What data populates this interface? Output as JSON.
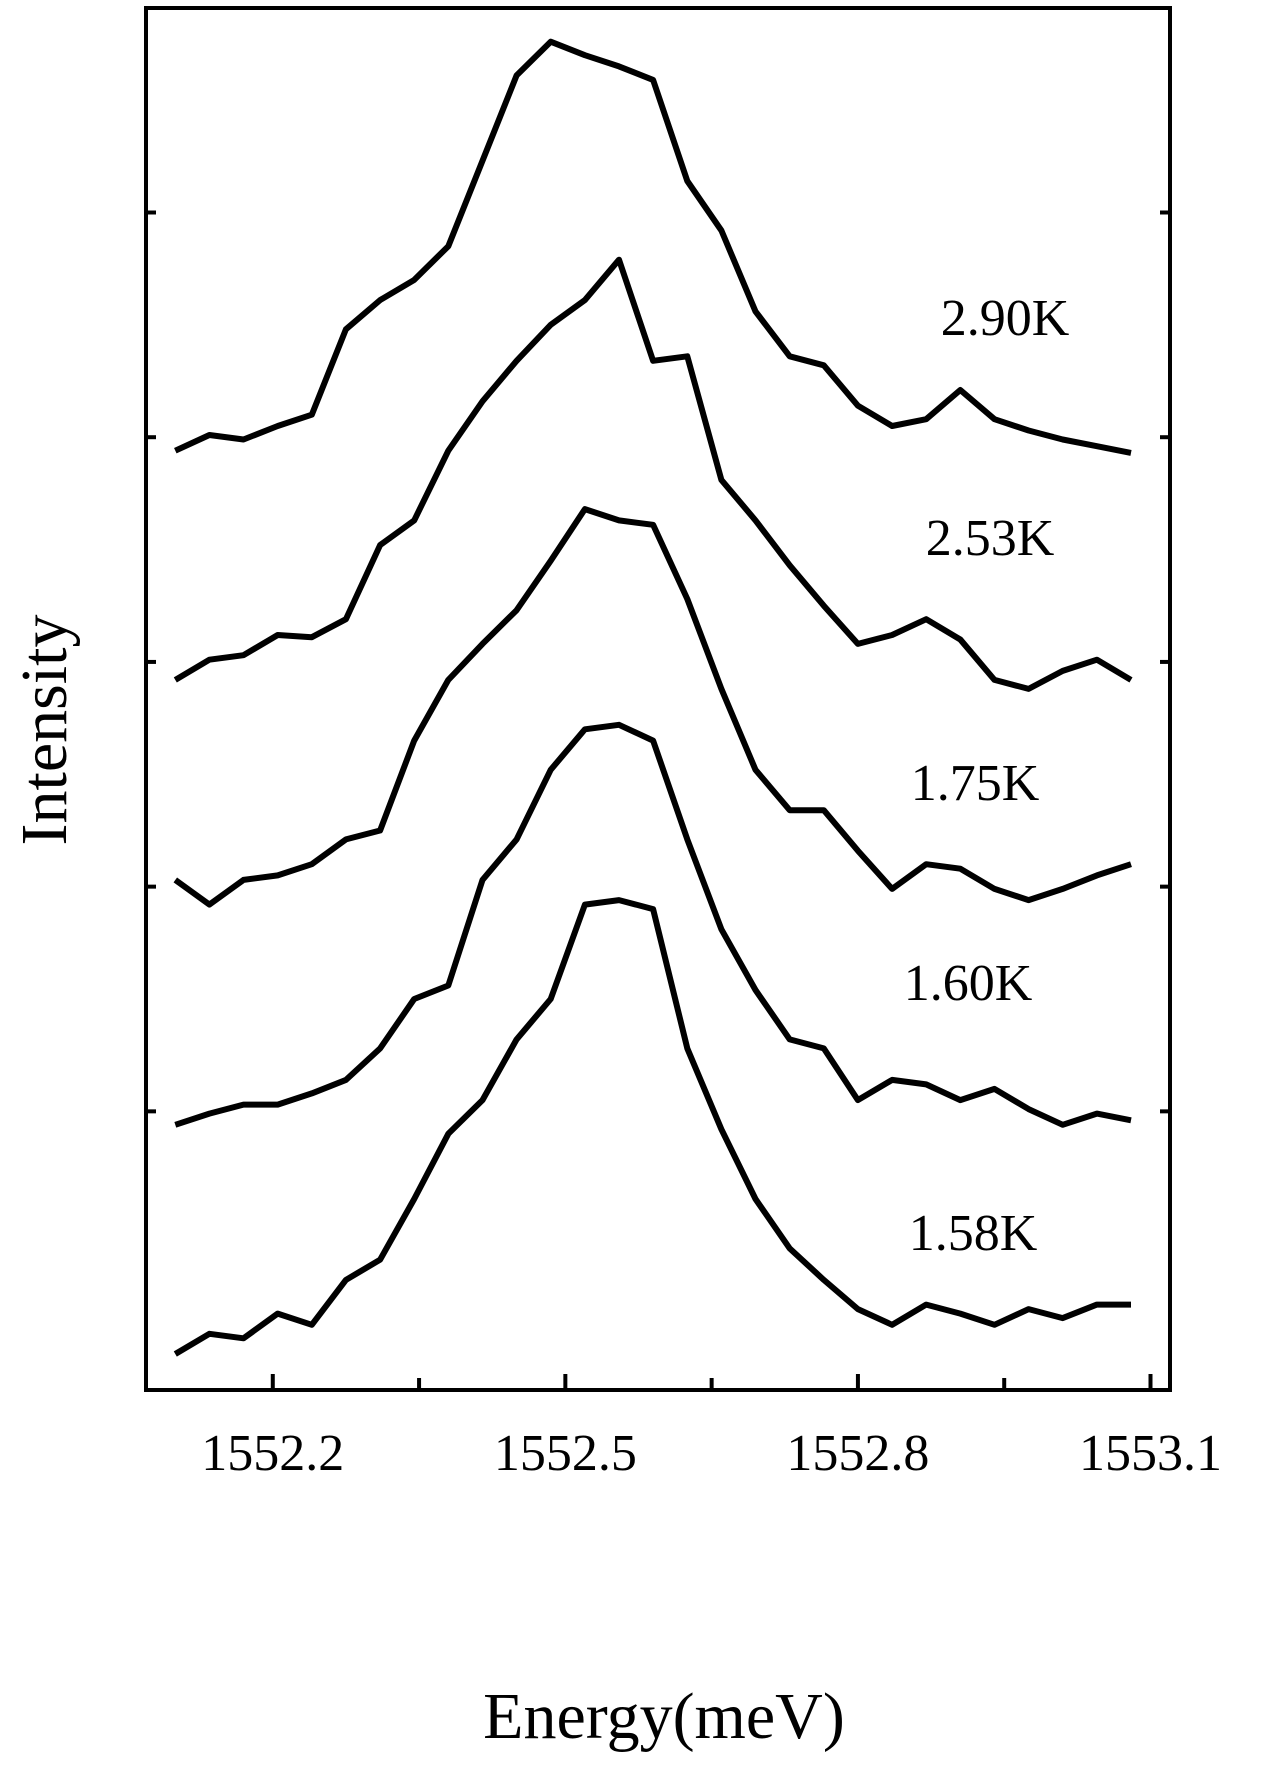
{
  "chart_data": {
    "type": "line",
    "x_label": "Energy(meV)",
    "y_label": "Intensity",
    "xlim": [
      1552.07,
      1553.12
    ],
    "xticks": [
      1552.2,
      1552.5,
      1552.8,
      1553.1
    ],
    "xminor": [
      1552.35,
      1552.65,
      1552.95
    ],
    "ylim": [
      -0.24,
      5.91
    ],
    "yticks": [
      1,
      2,
      3,
      4,
      5
    ],
    "x": [
      1552.1,
      1552.135,
      1552.17,
      1552.205,
      1552.24,
      1552.275,
      1552.31,
      1552.345,
      1552.38,
      1552.415,
      1552.45,
      1552.485,
      1552.52,
      1552.555,
      1552.59,
      1552.625,
      1552.66,
      1552.695,
      1552.73,
      1552.765,
      1552.8,
      1552.835,
      1552.87,
      1552.905,
      1552.94,
      1552.975,
      1553.01,
      1553.045,
      1553.08
    ],
    "series": [
      {
        "name": "2.90K",
        "color": "#000000",
        "values": [
          3.94,
          4.01,
          3.99,
          4.05,
          4.1,
          4.48,
          4.61,
          4.7,
          4.85,
          5.23,
          5.61,
          5.76,
          5.7,
          5.65,
          5.59,
          5.14,
          4.92,
          4.56,
          4.36,
          4.32,
          4.14,
          4.05,
          4.08,
          4.21,
          4.08,
          4.03,
          3.99,
          3.96,
          3.93
        ]
      },
      {
        "name": "2.53K",
        "color": "#000000",
        "values": [
          2.92,
          3.01,
          3.03,
          3.12,
          3.11,
          3.19,
          3.52,
          3.63,
          3.94,
          4.16,
          4.34,
          4.5,
          4.61,
          4.79,
          4.34,
          4.36,
          3.81,
          3.63,
          3.43,
          3.25,
          3.08,
          3.12,
          3.19,
          3.1,
          2.92,
          2.88,
          2.96,
          3.01,
          2.92
        ]
      },
      {
        "name": "1.75K",
        "color": "#000000",
        "values": [
          2.03,
          1.92,
          2.03,
          2.05,
          2.1,
          2.21,
          2.25,
          2.65,
          2.92,
          3.08,
          3.23,
          3.45,
          3.68,
          3.63,
          3.61,
          3.28,
          2.88,
          2.52,
          2.34,
          2.34,
          2.16,
          1.99,
          2.1,
          2.08,
          1.99,
          1.94,
          1.99,
          2.05,
          2.1
        ]
      },
      {
        "name": "1.60K",
        "color": "#000000",
        "values": [
          0.94,
          0.99,
          1.03,
          1.03,
          1.08,
          1.14,
          1.28,
          1.5,
          1.56,
          2.03,
          2.21,
          2.52,
          2.7,
          2.72,
          2.65,
          2.21,
          1.81,
          1.54,
          1.32,
          1.28,
          1.05,
          1.14,
          1.12,
          1.05,
          1.1,
          1.01,
          0.94,
          0.99,
          0.96
        ]
      },
      {
        "name": "1.58K",
        "color": "#000000",
        "values": [
          -0.08,
          0.01,
          -0.01,
          0.1,
          0.05,
          0.25,
          0.34,
          0.61,
          0.9,
          1.05,
          1.32,
          1.5,
          1.92,
          1.94,
          1.9,
          1.28,
          0.92,
          0.61,
          0.39,
          0.25,
          0.12,
          0.05,
          0.14,
          0.1,
          0.05,
          0.12,
          0.08,
          0.14,
          0.14
        ]
      }
    ]
  }
}
